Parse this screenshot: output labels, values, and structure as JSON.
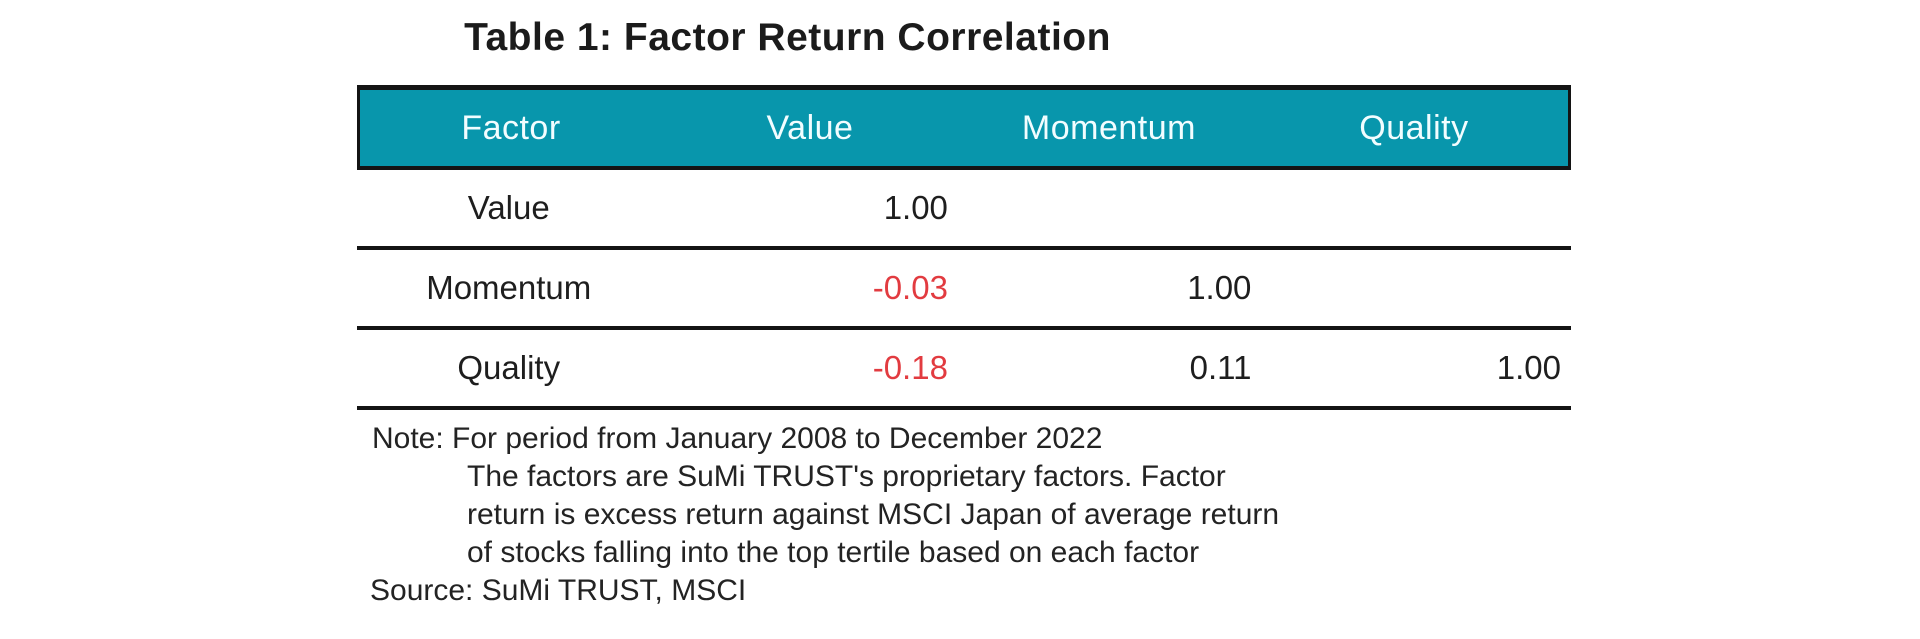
{
  "title": "Table 1: Factor Return Correlation",
  "table": {
    "columns": [
      "Factor",
      "Value",
      "Momentum",
      "Quality"
    ],
    "rows": [
      [
        "Value",
        "1.00",
        "",
        ""
      ],
      [
        "Momentum",
        "-0.03",
        "1.00",
        ""
      ],
      [
        "Quality",
        "-0.18",
        "0.11",
        "1.00"
      ]
    ]
  },
  "note": {
    "line1": "Note: For period from January 2008 to December 2022",
    "line2": "The factors are SuMi TRUST's proprietary factors. Factor",
    "line3": "return is excess return against MSCI Japan of average return",
    "line4": "of stocks falling into the top tertile based on each factor",
    "source": "Source: SuMi TRUST, MSCI"
  },
  "colors": {
    "header_bg": "#0896ac",
    "header_text": "#f2fdff",
    "negative_value": "#e23b40",
    "body_text": "#1e1e1e",
    "rule": "#141414"
  }
}
